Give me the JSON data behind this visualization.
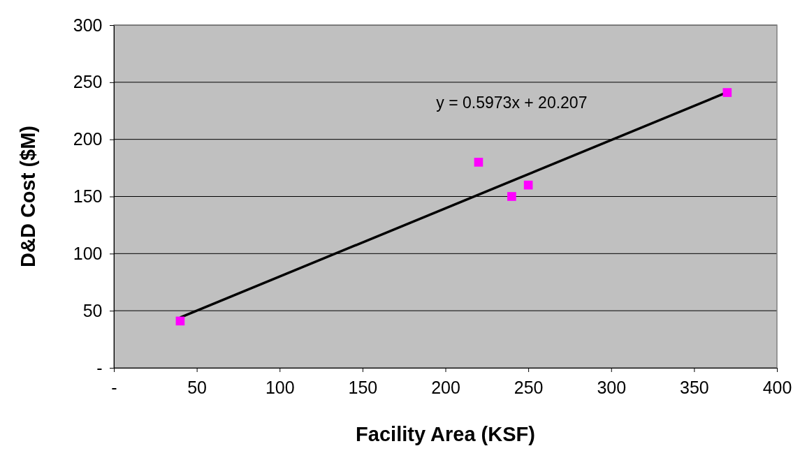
{
  "chart_data": {
    "type": "scatter",
    "xlabel": "Facility Area (KSF)",
    "ylabel": "D&D Cost ($M)",
    "xlim": [
      0,
      400
    ],
    "xticks": [
      {
        "value": 0,
        "label": "-"
      },
      50,
      100,
      150,
      200,
      250,
      300,
      350,
      400
    ],
    "ylim": [
      0,
      300
    ],
    "yticks": [
      {
        "value": 0,
        "label": "-"
      },
      50,
      100,
      150,
      200,
      250,
      300
    ],
    "grid": "y",
    "marker": "square",
    "series": [
      {
        "color": "#ff00ff",
        "x": [
          40,
          220,
          240,
          250,
          370
        ],
        "values": [
          41,
          180,
          150,
          160,
          241
        ]
      },
      {
        "type": "line",
        "color": "#000000",
        "marker": "none",
        "x": [
          40,
          370
        ],
        "values": [
          44.1,
          241.2
        ]
      }
    ],
    "annotations": [
      "y = 0.5973x + 20.207"
    ]
  }
}
